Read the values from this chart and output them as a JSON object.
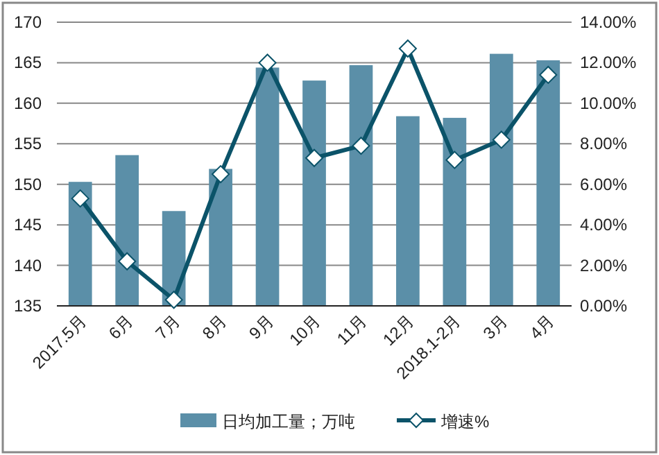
{
  "chart_data": {
    "type": "bar",
    "categories": [
      "2017.5月",
      "6月",
      "7月",
      "8月",
      "9月",
      "10月",
      "11月",
      "12月",
      "2018.1-2月",
      "3月",
      "4月"
    ],
    "series": [
      {
        "name": "日均加工量；万吨",
        "color": "#5b8fa8",
        "values": [
          150.3,
          153.6,
          146.7,
          151.9,
          164.4,
          162.8,
          164.7,
          158.4,
          158.2,
          166.1,
          165.3
        ]
      },
      {
        "name": "增速%",
        "type": "line",
        "axis": "y2",
        "color": "#0b5369",
        "marker": "diamond",
        "values": [
          5.3,
          2.2,
          0.3,
          6.5,
          12.0,
          7.3,
          7.9,
          12.7,
          7.2,
          8.2,
          11.4
        ]
      }
    ],
    "ylim": [
      135,
      170
    ],
    "yticks": [
      135,
      140,
      145,
      150,
      155,
      160,
      165,
      170
    ],
    "y2lim": [
      0,
      14
    ],
    "y2ticks": [
      {
        "value": 0,
        "label": "0.00%"
      },
      {
        "value": 2,
        "label": "2.00%"
      },
      {
        "value": 4,
        "label": "4.00%"
      },
      {
        "value": 6,
        "label": "6.00%"
      },
      {
        "value": 8,
        "label": "8.00%"
      },
      {
        "value": 10,
        "label": "10.00%"
      },
      {
        "value": 12,
        "label": "12.00%"
      },
      {
        "value": 14,
        "label": "14.00%"
      }
    ],
    "grid": "y",
    "legend": "bottom"
  }
}
